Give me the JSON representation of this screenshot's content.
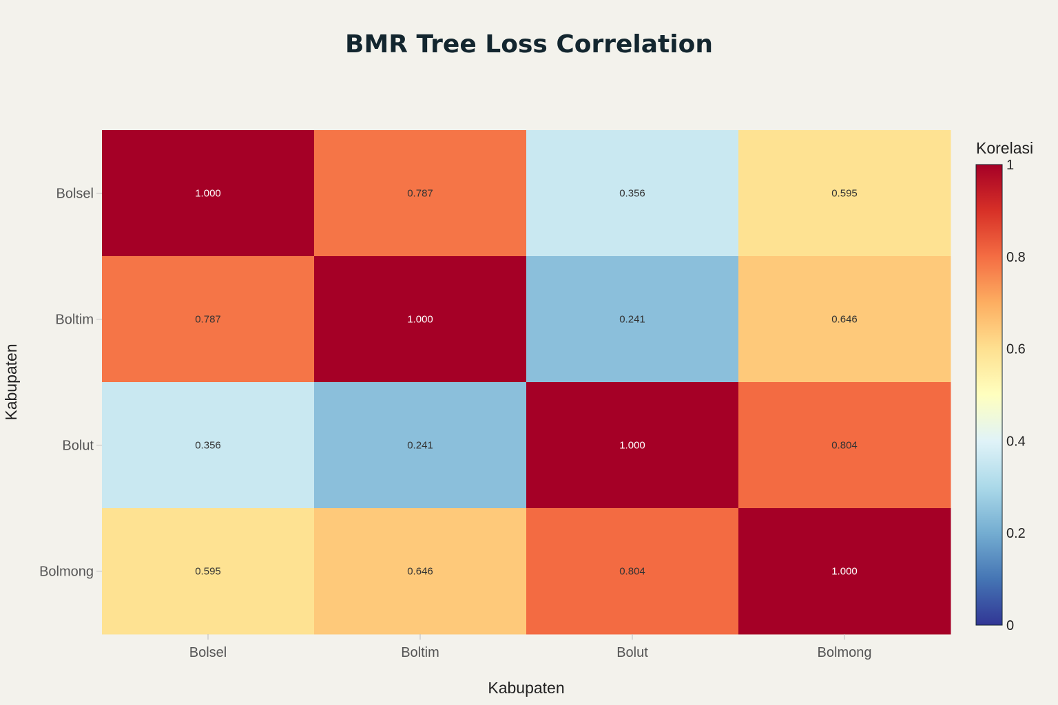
{
  "chart_data": {
    "type": "heatmap",
    "title": "BMR Tree Loss Correlation",
    "xlabel": "Kabupaten",
    "ylabel": "Kabupaten",
    "x_categories": [
      "Bolsel",
      "Boltim",
      "Bolut",
      "Bolmong"
    ],
    "y_categories": [
      "Bolsel",
      "Boltim",
      "Bolut",
      "Bolmong"
    ],
    "values": [
      [
        1.0,
        0.787,
        0.356,
        0.595
      ],
      [
        0.787,
        1.0,
        0.241,
        0.646
      ],
      [
        0.356,
        0.241,
        1.0,
        0.804
      ],
      [
        0.595,
        0.646,
        0.804,
        1.0
      ]
    ],
    "value_labels": [
      [
        "1.000",
        "0.787",
        "0.356",
        "0.595"
      ],
      [
        "0.787",
        "1.000",
        "0.241",
        "0.646"
      ],
      [
        "0.356",
        "0.241",
        "1.000",
        "0.804"
      ],
      [
        "0.595",
        "0.646",
        "0.804",
        "1.000"
      ]
    ],
    "colorbar": {
      "title": "Korelasi",
      "range": [
        0,
        1
      ],
      "ticks": [
        0,
        0.2,
        0.4,
        0.6,
        0.8,
        1
      ],
      "tick_labels": [
        "0",
        "0.2",
        "0.4",
        "0.6",
        "0.8",
        "1"
      ]
    },
    "colorscale": "RdYlBu reversed",
    "colors": {
      "background": "#f3f2ec",
      "colorscale_stops": [
        "#313695",
        "#4575b4",
        "#74add1",
        "#abd9e9",
        "#e0f3f8",
        "#ffffbf",
        "#fee090",
        "#fdae61",
        "#f46d43",
        "#d73027",
        "#a50026"
      ]
    }
  }
}
